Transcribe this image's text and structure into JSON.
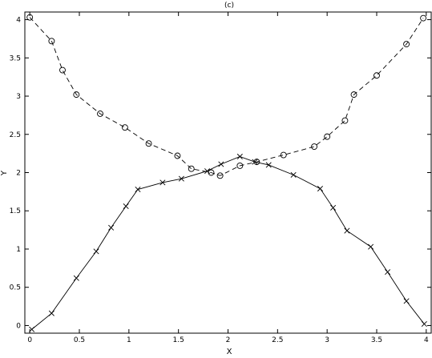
{
  "chart_data": {
    "type": "line",
    "title": "(c)",
    "xlabel": "X",
    "ylabel": "Y",
    "xlim": [
      -0.05,
      4.05
    ],
    "ylim": [
      -0.1,
      4.1
    ],
    "xticks": [
      "0",
      "0.5",
      "1",
      "1.5",
      "2",
      "2.5",
      "3",
      "3.5",
      "4"
    ],
    "yticks": [
      "0",
      "0.5",
      "1",
      "1.5",
      "2",
      "2.5",
      "3",
      "3.5",
      "4"
    ],
    "grid": false,
    "series": [
      {
        "marker": "circle",
        "line_style": "dashed",
        "x": [
          0.0,
          0.22,
          0.33,
          0.47,
          0.71,
          0.96,
          1.2,
          1.49,
          1.63,
          1.83,
          1.92,
          2.12,
          2.29,
          2.56,
          2.87,
          3.0,
          3.18,
          3.27,
          3.5,
          3.8,
          3.97
        ],
        "y": [
          4.03,
          3.72,
          3.34,
          3.02,
          2.77,
          2.59,
          2.38,
          2.22,
          2.05,
          2.0,
          1.96,
          2.09,
          2.14,
          2.23,
          2.34,
          2.47,
          2.68,
          3.02,
          3.27,
          3.68,
          4.02
        ]
      },
      {
        "marker": "x",
        "line_style": "solid",
        "x": [
          0.02,
          0.22,
          0.47,
          0.67,
          0.82,
          0.97,
          1.09,
          1.34,
          1.53,
          1.79,
          1.93,
          2.12,
          2.27,
          2.41,
          2.66,
          2.93,
          3.06,
          3.2,
          3.44,
          3.61,
          3.8,
          3.98
        ],
        "y": [
          -0.05,
          0.16,
          0.62,
          0.97,
          1.28,
          1.56,
          1.78,
          1.87,
          1.92,
          2.02,
          2.11,
          2.21,
          2.14,
          2.1,
          1.97,
          1.79,
          1.54,
          1.24,
          1.03,
          0.7,
          0.32,
          0.02
        ]
      }
    ]
  }
}
